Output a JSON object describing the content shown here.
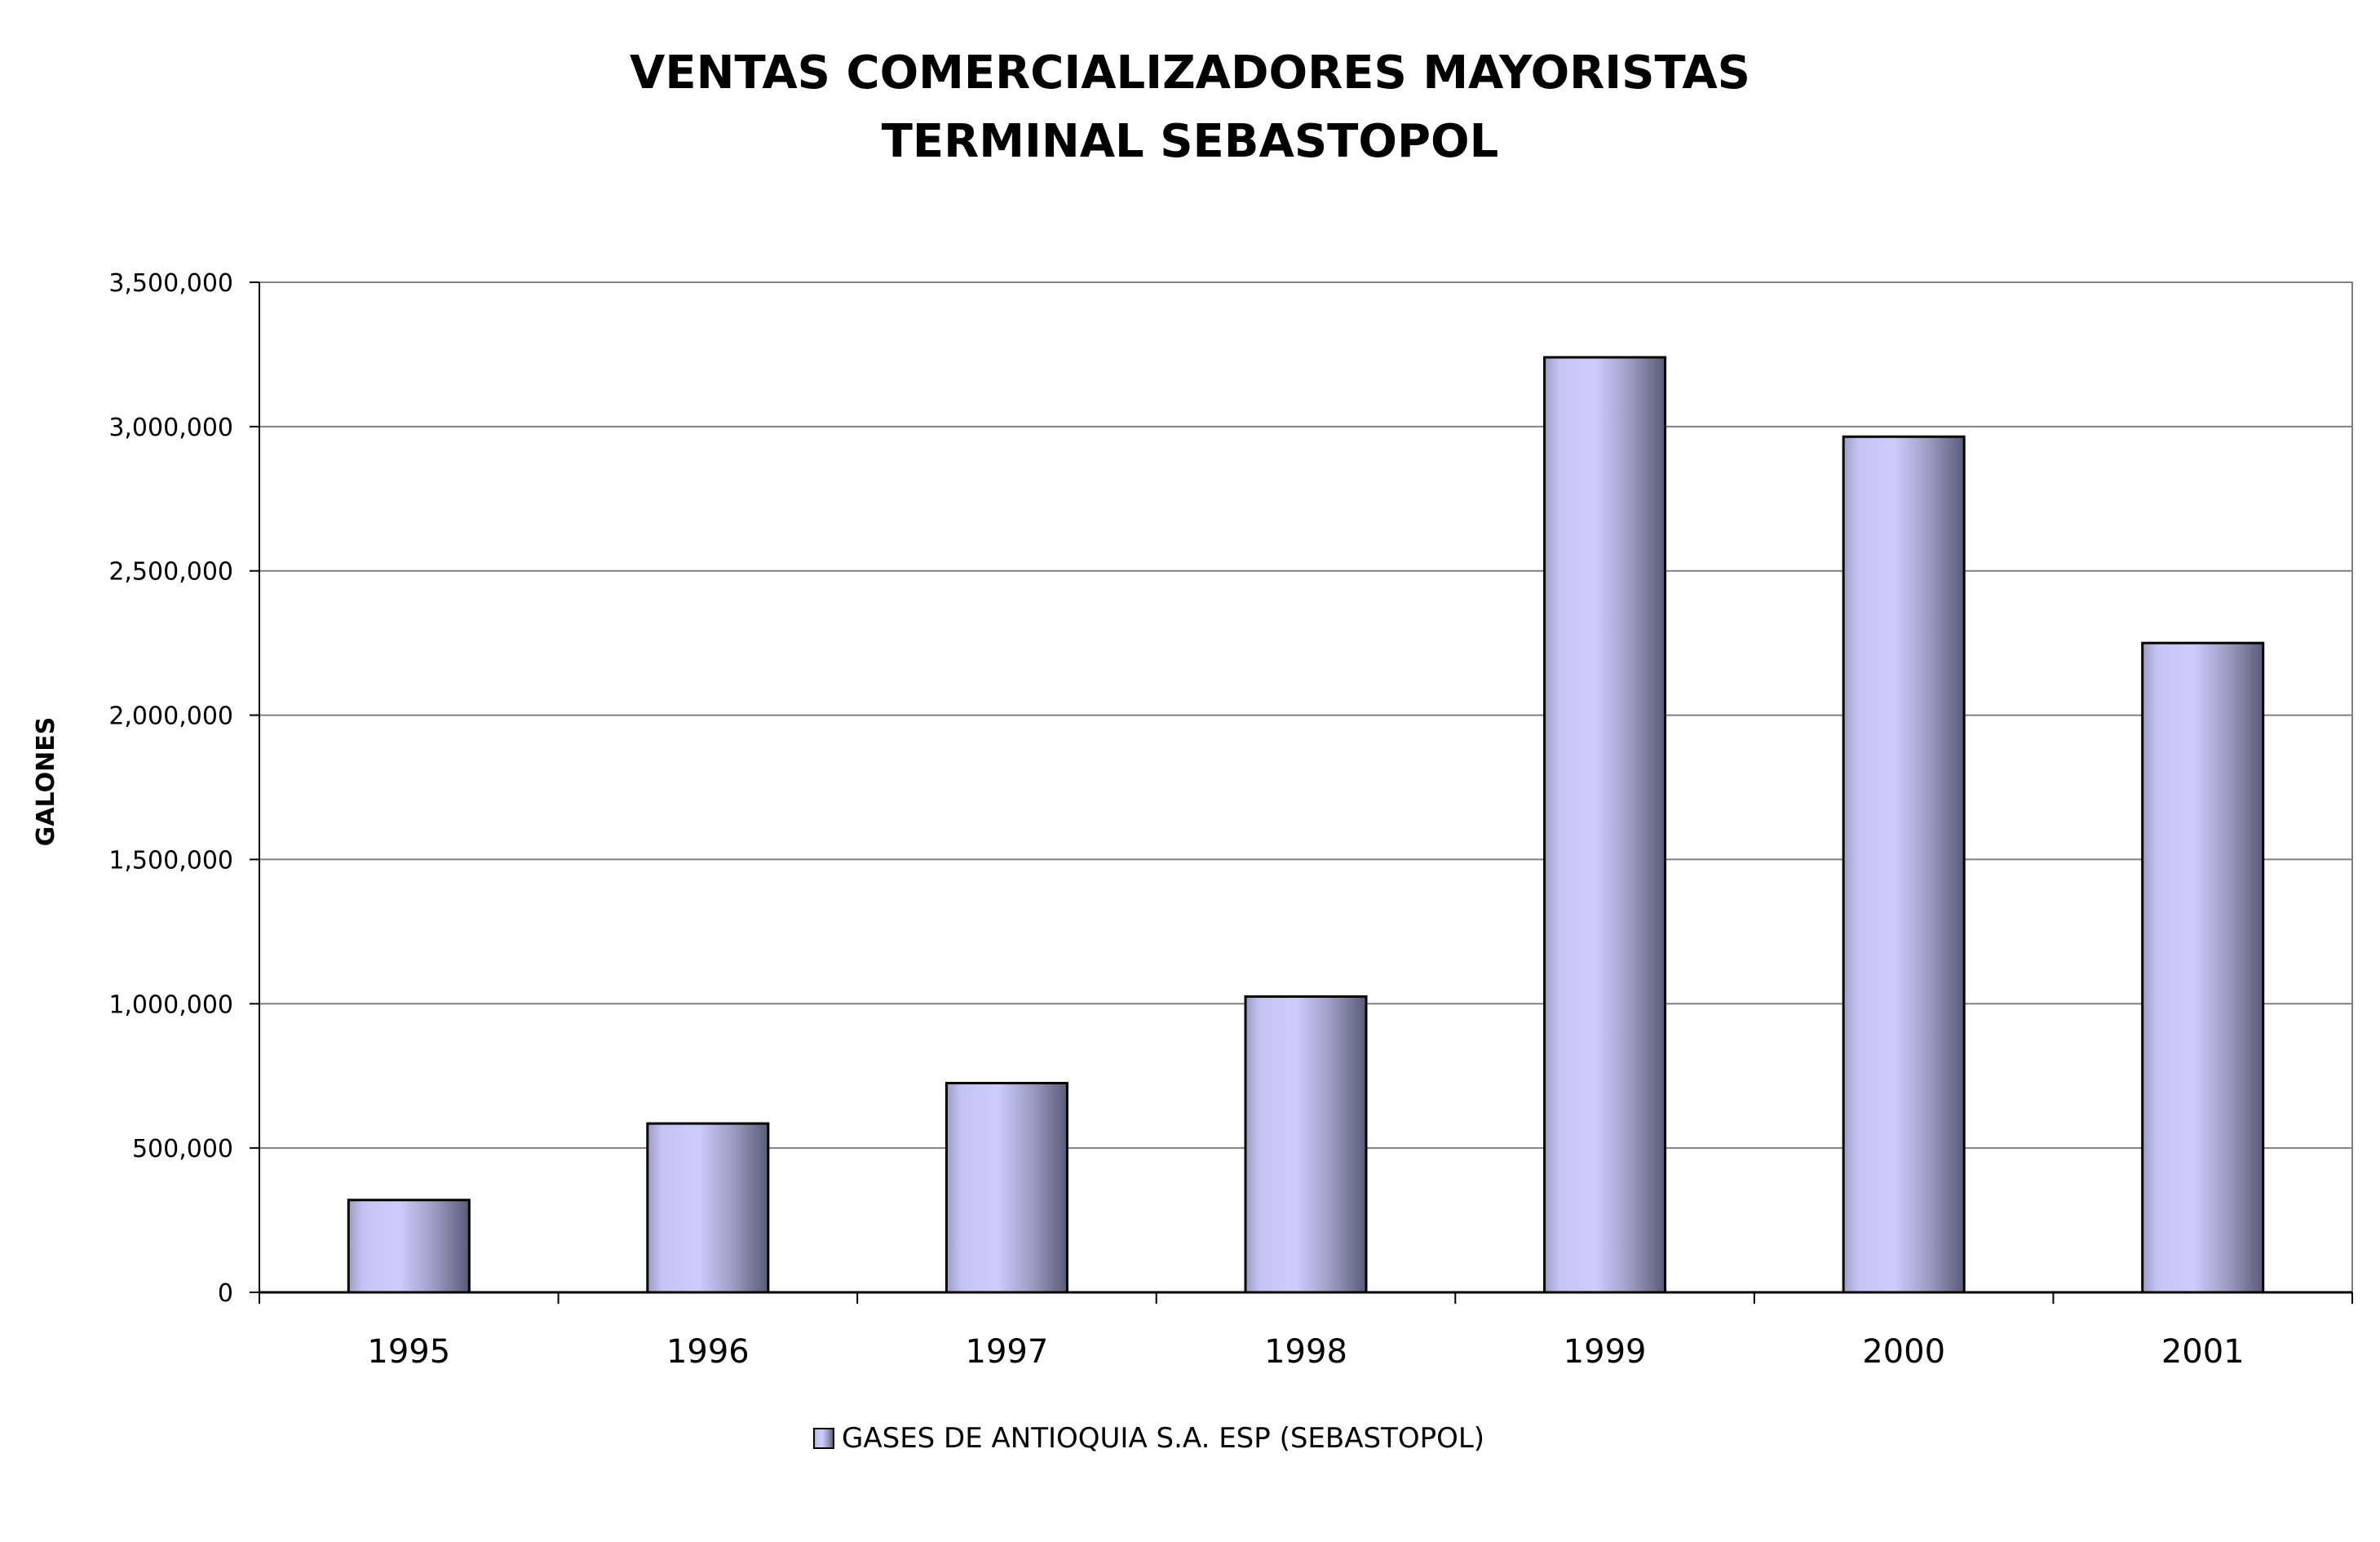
{
  "chart_data": {
    "type": "bar",
    "title": [
      "VENTAS COMERCIALIZADORES MAYORISTAS",
      "TERMINAL SEBASTOPOL"
    ],
    "xlabel": "",
    "ylabel": "GALONES",
    "categories": [
      "1995",
      "1996",
      "1997",
      "1998",
      "1999",
      "2000",
      "2001"
    ],
    "series": [
      {
        "name": "GASES DE ANTIOQUIA S.A. ESP (SEBASTOPOL)",
        "values": [
          320000,
          585000,
          725000,
          1025000,
          3240000,
          2965000,
          2250000
        ]
      }
    ],
    "ylim": [
      0,
      3500000
    ],
    "yticks": [
      0,
      500000,
      1000000,
      1500000,
      2000000,
      2500000,
      3000000,
      3500000
    ],
    "ytick_labels": [
      "0",
      "500,000",
      "1,000,000",
      "1,500,000",
      "2,000,000",
      "2,500,000",
      "3,000,000",
      "3,500,000"
    ],
    "grid": true,
    "legend_position": "bottom",
    "colors": {
      "bar_light": "#ccccff",
      "bar_dark": "#5a5a78",
      "outline": "#000000",
      "gridline": "#808080"
    }
  }
}
